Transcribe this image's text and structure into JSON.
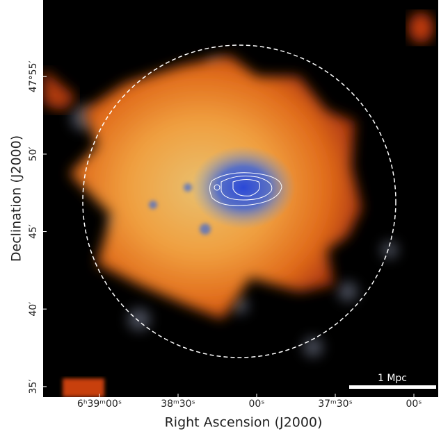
{
  "chart_data": {
    "type": "image",
    "xlabel": "Right Ascension (J2000)",
    "ylabel": "Declination (J2000)",
    "xlim": [
      99.8396,
      99.2113
    ],
    "ylim": [
      47.572,
      47.999
    ],
    "xticks": [
      {
        "value": 99.75,
        "label": "6ʰ39ᵐ00ˢ"
      },
      {
        "value": 99.625,
        "label": "38ᵐ30ˢ"
      },
      {
        "value": 99.5,
        "label": "00ˢ"
      },
      {
        "value": 99.375,
        "label": "37ᵐ30ˢ"
      },
      {
        "value": 99.25,
        "label": "00ˢ"
      }
    ],
    "yticks": [
      {
        "value": 47.9167,
        "label": "47°55′"
      },
      {
        "value": 47.8333,
        "label": "50′"
      },
      {
        "value": 47.75,
        "label": "45′"
      },
      {
        "value": 47.6667,
        "label": "40′"
      },
      {
        "value": 47.5833,
        "label": "35′"
      }
    ],
    "scalebar_label": "1 Mpc"
  }
}
